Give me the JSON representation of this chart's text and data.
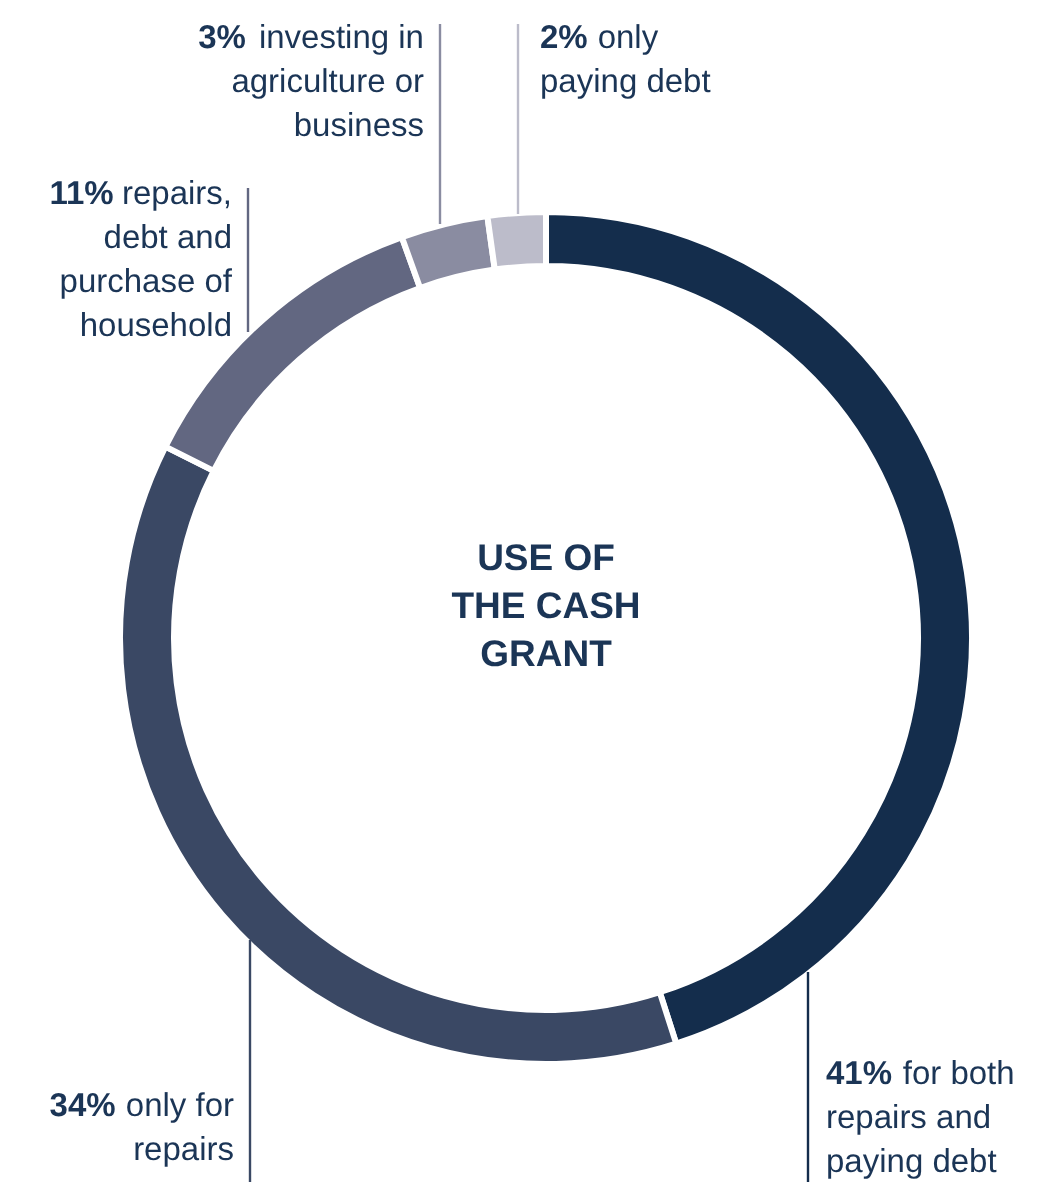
{
  "chart_data": {
    "type": "donut",
    "title": "USE OF THE CASH GRANT",
    "categories": [
      "for both repairs and paying debt",
      "only for repairs",
      "repairs, debt and purchase of household",
      "investing in agriculture or business",
      "only paying debt"
    ],
    "values": [
      41,
      34,
      11,
      3,
      2
    ],
    "value_labels": [
      "41%",
      "34%",
      "11%",
      "3%",
      "2%"
    ],
    "colors": [
      "#142d4c",
      "#3a4864",
      "#626781",
      "#8a8ca1",
      "#bcbcca"
    ]
  }
}
